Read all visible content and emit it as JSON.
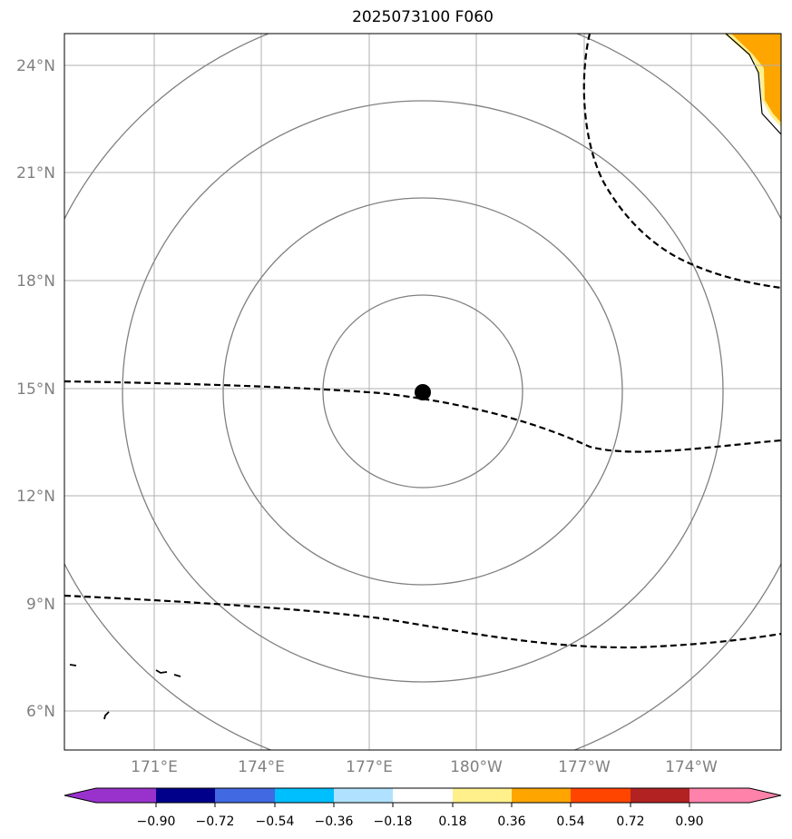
{
  "title": "2025073100 F060",
  "map": {
    "lat_labels": [
      "24°N",
      "21°N",
      "18°N",
      "15°N",
      "12°N",
      "9°N",
      "6°N"
    ],
    "lon_labels": [
      "171°E",
      "174°E",
      "177°E",
      "180°W",
      "177°W",
      "174°W"
    ],
    "center_marker": "storm-center",
    "colors": {
      "grid": "#b0b0b0",
      "range_rings": "#808080",
      "dashed_contour": "#000000"
    }
  },
  "colorbar": {
    "tick_labels": [
      "−0.90",
      "−0.72",
      "−0.54",
      "−0.36",
      "−0.18",
      "0.18",
      "0.36",
      "0.54",
      "0.72",
      "0.90"
    ],
    "colors": [
      "#9932cc",
      "#00008b",
      "#4169e1",
      "#00bfff",
      "#b0e2ff",
      "#ffffff",
      "#fff08c",
      "#ffa500",
      "#ff4500",
      "#b22222",
      "#ff82ab"
    ]
  }
}
